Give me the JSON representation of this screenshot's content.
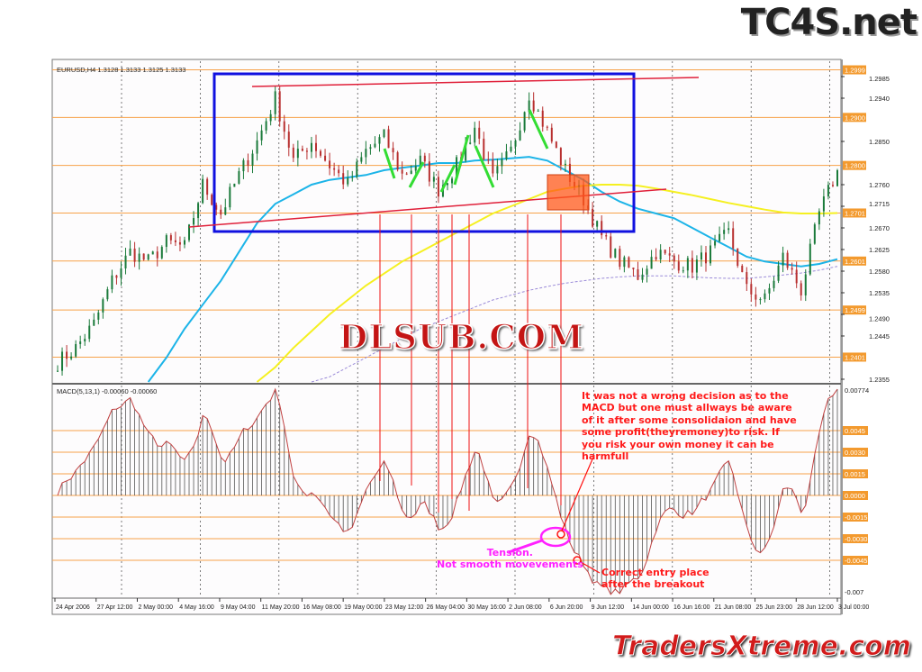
{
  "logos": {
    "top_right": "TC4S.net",
    "center": "DLSUB.COM",
    "bottom_right": "TradersXtreme.com"
  },
  "chart_data": {
    "type": "candlestick",
    "price_pane": {
      "header": "EURUSD,H4  1.3128 1.3133 1.3125 1.3133",
      "ylim": [
        1.234,
        1.3
      ],
      "tick_labels": [
        "1.2985",
        "1.2940",
        "1.2850",
        "1.2760",
        "1.2715",
        "1.2670",
        "1.2625",
        "1.2580",
        "1.2535",
        "1.2490",
        "1.2445",
        "1.2355"
      ],
      "level_lines": [
        "1.2999",
        "1.2900",
        "1.2800",
        "1.2701",
        "1.2601",
        "1.2499",
        "1.2401"
      ],
      "closes": [
        1.239,
        1.242,
        1.247,
        1.256,
        1.262,
        1.26,
        1.264,
        1.263,
        1.276,
        1.27,
        1.278,
        1.285,
        1.294,
        1.281,
        1.285,
        1.28,
        1.276,
        1.283,
        1.286,
        1.278,
        1.281,
        1.275,
        1.28,
        1.288,
        1.277,
        1.283,
        1.295,
        1.287,
        1.279,
        1.273,
        1.265,
        1.26,
        1.257,
        1.262,
        1.26,
        1.259,
        1.262,
        1.266,
        1.254,
        1.252,
        1.261,
        1.254,
        1.27,
        1.279
      ],
      "moving_averages": [
        {
          "color": "#1cb4e8",
          "values": [
            null,
            null,
            null,
            null,
            null,
            1.234,
            1.24,
            1.246,
            1.251,
            1.256,
            1.262,
            1.268,
            1.272,
            1.274,
            1.276,
            1.277,
            1.2775,
            1.278,
            1.279,
            1.2795,
            1.28,
            1.2805,
            1.2805,
            1.281,
            1.2812,
            1.2815,
            1.2818,
            1.281,
            1.279,
            1.277,
            1.2745,
            1.2725,
            1.271,
            1.27,
            1.269,
            1.267,
            1.265,
            1.263,
            1.261,
            1.26,
            1.2595,
            1.259,
            1.2595,
            1.2605
          ]
        },
        {
          "color": "#f5f020",
          "values": [
            null,
            null,
            null,
            null,
            null,
            null,
            null,
            null,
            null,
            null,
            null,
            1.234,
            1.238,
            1.242,
            1.2455,
            1.249,
            1.252,
            1.255,
            1.2575,
            1.26,
            1.262,
            1.264,
            1.266,
            1.268,
            1.27,
            1.2715,
            1.273,
            1.2745,
            1.2752,
            1.2758,
            1.276,
            1.276,
            1.2758,
            1.2752,
            1.2745,
            1.2738,
            1.273,
            1.2722,
            1.2715,
            1.2708,
            1.2702,
            1.27,
            1.27,
            1.2701
          ]
        },
        {
          "color": "#9a8ad8",
          "dashed": true,
          "values": [
            null,
            null,
            null,
            null,
            null,
            null,
            null,
            null,
            null,
            null,
            null,
            null,
            null,
            null,
            1.234,
            1.236,
            1.238,
            1.24,
            1.242,
            1.244,
            1.246,
            1.2475,
            1.249,
            1.2505,
            1.252,
            1.253,
            1.254,
            1.2548,
            1.2555,
            1.256,
            1.2565,
            1.2568,
            1.257,
            1.257,
            1.257,
            1.2568,
            1.2566,
            1.2565,
            1.2565,
            1.2568,
            1.2572,
            1.2576,
            1.2582,
            1.259
          ]
        }
      ]
    },
    "macd_pane": {
      "header": "MACD(5,13,1) -0.00060 -0.00060",
      "ylim": [
        -0.007,
        0.00774
      ],
      "top_label": "0.00774",
      "bottom_label": "-0.007",
      "level_lines": [
        "0.0045",
        "0.0030",
        "0.0015",
        "0.0000",
        "-0.0015",
        "-0.0030",
        "-0.0045"
      ]
    },
    "x_tick_labels": [
      "24 Apr 2006",
      "27 Apr 12:00",
      "2 May 00:00",
      "4 May 16:00",
      "9 May 04:00",
      "11 May 20:00",
      "16 May 08:00",
      "19 May 00:00",
      "23 May 12:00",
      "26 May 04:00",
      "30 May 16:00",
      "2 Jun 08:00",
      "6 Jun 20:00",
      "9 Jun 12:00",
      "14 Jun 00:00",
      "16 Jun 16:00",
      "21 Jun 08:00",
      "25 Jun 23:00",
      "28 Jun 12:00",
      "3 Jul 00:00"
    ],
    "annotations": {
      "note": "It was not a wrong decision as to the MACD but one must allways be aware of it after some consolidaion and have some profit(theyremoney)to risk. If you risk your own money it can be harmfull",
      "tension": "Tension.",
      "tension_sub": "Not smooth movevements",
      "entry": "Correct entry place",
      "entry_sub": "after the breakout"
    },
    "colors": {
      "level": "#f7a24a",
      "label_bg": "#f39a2e",
      "box": "#1010e0",
      "trend": "#e0203a",
      "highlight": "#ff5a1a",
      "bull": "#1a7a3a",
      "bear": "#b83030"
    }
  }
}
